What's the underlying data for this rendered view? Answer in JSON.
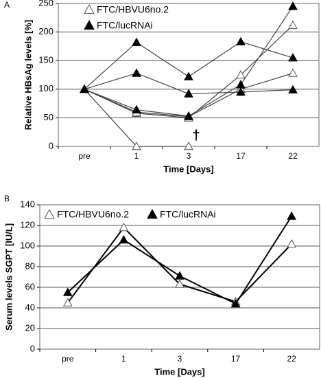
{
  "chart_data": [
    {
      "type": "line",
      "panel_label": "A",
      "categories": [
        "pre",
        "1",
        "3",
        "17",
        "22"
      ],
      "x_label": "Time [Days]",
      "y_label": "Relative HBsAg levels [%]",
      "ylim": [
        0,
        250
      ],
      "yticks": [
        0,
        50,
        100,
        150,
        200,
        250
      ],
      "grid": true,
      "annotations": [
        "†"
      ],
      "series": [
        {
          "name": "FTC/HBVU6no.2",
          "marker": "open",
          "color": "#555555",
          "values": [
            [
              100,
              0,
              0,
              null,
              null
            ],
            [
              100,
              58,
              50,
              125,
              212
            ],
            [
              100,
              60,
              52,
              100,
              128
            ]
          ]
        },
        {
          "name": "FTC/lucRNAi",
          "marker": "filled",
          "color": "#000000",
          "values": [
            [
              100,
              182,
              122,
              183,
              155
            ],
            [
              100,
              128,
              92,
              95,
              99
            ],
            [
              100,
              64,
              53,
              108,
              245
            ]
          ]
        }
      ]
    },
    {
      "type": "line",
      "panel_label": "B",
      "categories": [
        "pre",
        "1",
        "3",
        "17",
        "22"
      ],
      "x_label": "Time [Days]",
      "y_label": "Serum levels SGPT [IU/L]",
      "ylim": [
        0,
        140
      ],
      "yticks": [
        0,
        20,
        40,
        60,
        80,
        100,
        120,
        140
      ],
      "grid": true,
      "series": [
        {
          "name": "FTC/HBVU6no.2",
          "marker": "open",
          "color": "#555555",
          "values": [
            [
              45,
              118,
              63,
              46,
              102
            ]
          ]
        },
        {
          "name": "FTC/lucRNAi",
          "marker": "filled",
          "color": "#000000",
          "values": [
            [
              55,
              106,
              71,
              44,
              129
            ]
          ]
        }
      ]
    }
  ]
}
